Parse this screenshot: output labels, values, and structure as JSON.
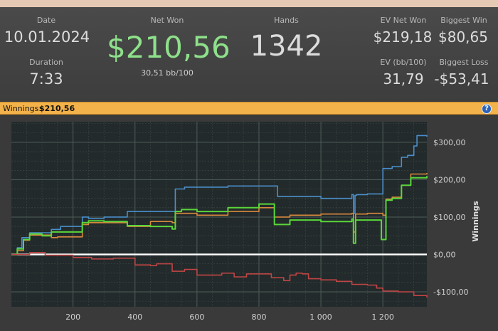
{
  "stats": {
    "date_label": "Date",
    "date_value": "10.01.2024",
    "duration_label": "Duration",
    "duration_value": "7:33",
    "net_won_label": "Net Won",
    "net_won_value": "$210,56",
    "bb_per_100": "30,51 bb/100",
    "hands_label": "Hands",
    "hands_value": "1342",
    "ev_net_won_label": "EV Net Won",
    "ev_net_won_value": "$219,18",
    "biggest_win_label": "Biggest Win",
    "biggest_win_value": "$80,65",
    "ev_bb_label": "EV (bb/100)",
    "ev_bb_value": "31,79",
    "biggest_loss_label": "Biggest Loss",
    "biggest_loss_value": "-$53,41"
  },
  "chart_header": {
    "label": "Winnings:",
    "value": "$210,56"
  },
  "colors": {
    "blue": "#4a8fcb",
    "orange": "#d88a3c",
    "green": "#5ad63a",
    "red": "#c04545",
    "zero": "#ffffff",
    "plot_bg": "#232a2b",
    "grid": "#3c4a46"
  },
  "chart_data": {
    "type": "line",
    "title": "",
    "xlabel": "",
    "ylabel": "Winnings",
    "xlim": [
      1,
      1342
    ],
    "ylim": [
      -140,
      355
    ],
    "x_ticks": [
      200,
      400,
      600,
      800,
      1000,
      1200
    ],
    "x_tick_labels": [
      "200",
      "400",
      "600",
      "800",
      "1 000",
      "1 200"
    ],
    "y_ticks": [
      300,
      200,
      100,
      0,
      -100
    ],
    "y_tick_labels": [
      "$300,00",
      "$200,00",
      "$100,00",
      "$0,00",
      "-$100,00"
    ],
    "grid": true,
    "series": [
      {
        "color": "blue",
        "x": [
          1,
          20,
          35,
          60,
          130,
          160,
          230,
          250,
          300,
          360,
          375,
          520,
          530,
          560,
          600,
          700,
          800,
          860,
          1000,
          1100,
          1105,
          1110,
          1115,
          1150,
          1200,
          1230,
          1260,
          1280,
          1300,
          1310,
          1342
        ],
        "y": [
          0,
          18,
          45,
          58,
          67,
          75,
          100,
          96,
          100,
          100,
          115,
          115,
          175,
          180,
          180,
          183,
          183,
          155,
          150,
          160,
          110,
          158,
          160,
          162,
          230,
          235,
          260,
          265,
          290,
          318,
          315
        ]
      },
      {
        "color": "orange",
        "x": [
          1,
          20,
          40,
          60,
          130,
          150,
          230,
          250,
          300,
          375,
          450,
          520,
          530,
          580,
          600,
          700,
          800,
          850,
          900,
          1000,
          1100,
          1105,
          1112,
          1150,
          1200,
          1210,
          1230,
          1260,
          1290,
          1342
        ],
        "y": [
          0,
          10,
          38,
          52,
          45,
          47,
          80,
          85,
          85,
          75,
          88,
          85,
          110,
          110,
          105,
          115,
          125,
          100,
          105,
          108,
          110,
          60,
          108,
          110,
          105,
          148,
          153,
          185,
          215,
          218
        ]
      },
      {
        "color": "green",
        "x": [
          1,
          20,
          40,
          60,
          100,
          130,
          230,
          250,
          300,
          375,
          450,
          520,
          530,
          550,
          600,
          700,
          800,
          850,
          900,
          1000,
          1100,
          1105,
          1112,
          1150,
          1195,
          1210,
          1230,
          1260,
          1290,
          1342
        ],
        "y": [
          0,
          15,
          40,
          55,
          50,
          60,
          85,
          90,
          88,
          77,
          75,
          68,
          115,
          120,
          115,
          125,
          135,
          80,
          92,
          88,
          95,
          30,
          92,
          92,
          40,
          145,
          150,
          185,
          205,
          210
        ]
      },
      {
        "color": "red",
        "x": [
          1,
          60,
          110,
          200,
          260,
          330,
          400,
          450,
          470,
          520,
          560,
          600,
          680,
          720,
          760,
          840,
          880,
          900,
          920,
          940,
          960,
          1000,
          1050,
          1100,
          1150,
          1180,
          1200,
          1250,
          1300,
          1342
        ],
        "y": [
          0,
          5,
          -2,
          -8,
          -12,
          -10,
          -28,
          -30,
          -25,
          -45,
          -40,
          -55,
          -50,
          -60,
          -52,
          -62,
          -70,
          -55,
          -50,
          -52,
          -65,
          -68,
          -72,
          -80,
          -82,
          -90,
          -98,
          -100,
          -110,
          -115
        ]
      }
    ]
  }
}
